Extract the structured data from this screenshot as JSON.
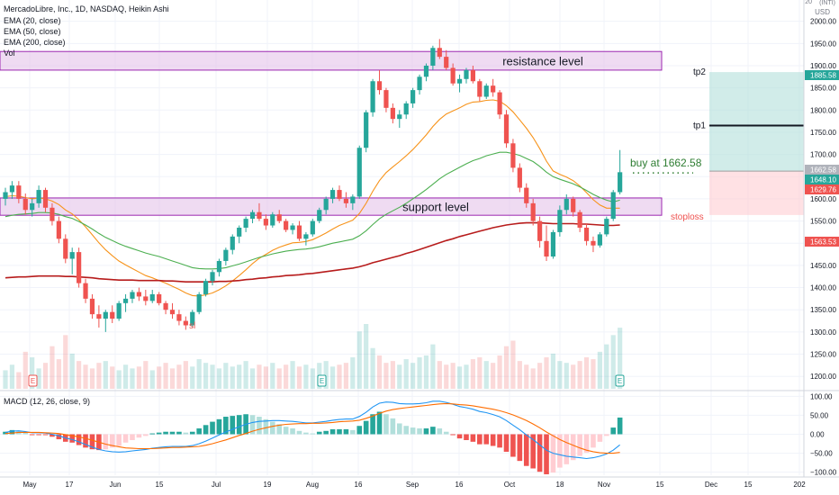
{
  "header": {
    "symbol_line": "MercadoLibre, Inc., 1D, NASDAQ, Heikin Ashi",
    "indicators": [
      "EMA (20, close)",
      "EMA (50, close)",
      "EMA (200, close)",
      "Vol"
    ],
    "macd_label": "MACD (12, 26, close, 9)"
  },
  "axis": {
    "currency_top": "20",
    "currency": "USD",
    "unit_top": "(INTI)"
  },
  "colors": {
    "up": "#26a69a",
    "down": "#ef5350",
    "ema20": "#f7931a",
    "ema50": "#4caf50",
    "ema200": "#b71c1c",
    "macd": "#2196f3",
    "signal": "#ff6d00",
    "zone_fill": "#e1bee7",
    "zone_border": "#9c27b0",
    "target_fill": "#b2dfdb",
    "stop_fill": "#ffcdd2"
  },
  "chart_data": {
    "type": "candlestick",
    "price_axis": {
      "ticks": [
        1200,
        1250,
        1300,
        1350,
        1400,
        1450,
        1500,
        1550,
        1600,
        1650,
        1700,
        1750,
        1800,
        1850,
        1900,
        1950,
        2000
      ],
      "ylim": [
        1172,
        2048
      ]
    },
    "macd_axis": {
      "ticks": [
        100,
        50,
        0,
        -50,
        -100
      ],
      "tick_labels": [
        "100.00",
        "50.00",
        "0.00",
        "−50.00",
        "−100.00"
      ],
      "ylim": [
        -108,
        108
      ]
    },
    "time_axis": {
      "labels": [
        "May",
        "17",
        "Jun",
        "15",
        "Jul",
        "19",
        "Aug",
        "16",
        "Sep",
        "16",
        "Oct",
        "18",
        "Nov",
        "15",
        "Dec",
        "15",
        "202"
      ]
    },
    "price_badges": [
      {
        "value": "1885.58",
        "color": "#26a69a"
      },
      {
        "value": "1662.58",
        "color": "#b0b3bb"
      },
      {
        "value": "1648.10",
        "color": "#26a69a"
      },
      {
        "value": "1629.76",
        "color": "#ef5350"
      },
      {
        "value": "1563.53",
        "color": "#ef5350"
      }
    ],
    "annotations": {
      "resistance": {
        "label": "resistance level",
        "low": 1890,
        "high": 1932
      },
      "support": {
        "label": "support level",
        "low": 1563,
        "high": 1602
      },
      "buy": {
        "label": "buy at 1662.58",
        "price": 1662.58
      },
      "tp1": {
        "label": "tp1",
        "price": 1765
      },
      "tp2": {
        "label": "tp2",
        "price": 1885.58
      },
      "stoploss": {
        "label": "stoploss",
        "price": 1563.53
      },
      "sl": {
        "label": "sl"
      },
      "earnings_marker": "E"
    },
    "candles_ohlc": [
      [
        1600,
        1625,
        1585,
        1615
      ],
      [
        1615,
        1640,
        1600,
        1630
      ],
      [
        1630,
        1640,
        1590,
        1600
      ],
      [
        1600,
        1612,
        1565,
        1575
      ],
      [
        1575,
        1600,
        1560,
        1590
      ],
      [
        1590,
        1630,
        1580,
        1620
      ],
      [
        1620,
        1625,
        1570,
        1580
      ],
      [
        1580,
        1590,
        1540,
        1550
      ],
      [
        1550,
        1560,
        1500,
        1510
      ],
      [
        1510,
        1520,
        1455,
        1465
      ],
      [
        1465,
        1490,
        1430,
        1480
      ],
      [
        1480,
        1490,
        1400,
        1410
      ],
      [
        1410,
        1420,
        1365,
        1375
      ],
      [
        1375,
        1385,
        1330,
        1340
      ],
      [
        1340,
        1360,
        1310,
        1330
      ],
      [
        1330,
        1350,
        1300,
        1345
      ],
      [
        1345,
        1360,
        1320,
        1330
      ],
      [
        1330,
        1370,
        1325,
        1365
      ],
      [
        1365,
        1385,
        1345,
        1375
      ],
      [
        1375,
        1395,
        1365,
        1390
      ],
      [
        1390,
        1400,
        1370,
        1380
      ],
      [
        1380,
        1395,
        1360,
        1370
      ],
      [
        1370,
        1395,
        1365,
        1385
      ],
      [
        1385,
        1390,
        1360,
        1365
      ],
      [
        1365,
        1370,
        1340,
        1350
      ],
      [
        1350,
        1365,
        1330,
        1340
      ],
      [
        1340,
        1350,
        1315,
        1325
      ],
      [
        1325,
        1335,
        1305,
        1315
      ],
      [
        1315,
        1350,
        1310,
        1345
      ],
      [
        1345,
        1390,
        1340,
        1385
      ],
      [
        1385,
        1420,
        1380,
        1415
      ],
      [
        1415,
        1440,
        1405,
        1435
      ],
      [
        1435,
        1465,
        1425,
        1460
      ],
      [
        1460,
        1490,
        1450,
        1485
      ],
      [
        1485,
        1520,
        1475,
        1515
      ],
      [
        1515,
        1540,
        1500,
        1535
      ],
      [
        1535,
        1560,
        1525,
        1555
      ],
      [
        1555,
        1575,
        1545,
        1570
      ],
      [
        1570,
        1590,
        1550,
        1555
      ],
      [
        1555,
        1565,
        1530,
        1540
      ],
      [
        1540,
        1570,
        1535,
        1565
      ],
      [
        1565,
        1575,
        1545,
        1550
      ],
      [
        1550,
        1555,
        1525,
        1530
      ],
      [
        1530,
        1545,
        1520,
        1540
      ],
      [
        1540,
        1550,
        1505,
        1510
      ],
      [
        1510,
        1525,
        1495,
        1520
      ],
      [
        1520,
        1555,
        1515,
        1550
      ],
      [
        1550,
        1580,
        1545,
        1575
      ],
      [
        1575,
        1605,
        1565,
        1600
      ],
      [
        1600,
        1625,
        1590,
        1620
      ],
      [
        1620,
        1630,
        1595,
        1600
      ],
      [
        1600,
        1615,
        1580,
        1590
      ],
      [
        1590,
        1610,
        1575,
        1605
      ],
      [
        1605,
        1720,
        1600,
        1715
      ],
      [
        1715,
        1800,
        1705,
        1795
      ],
      [
        1795,
        1870,
        1785,
        1865
      ],
      [
        1865,
        1890,
        1835,
        1845
      ],
      [
        1845,
        1850,
        1795,
        1805
      ],
      [
        1805,
        1815,
        1770,
        1780
      ],
      [
        1780,
        1800,
        1760,
        1790
      ],
      [
        1790,
        1820,
        1780,
        1815
      ],
      [
        1815,
        1850,
        1805,
        1845
      ],
      [
        1845,
        1880,
        1835,
        1875
      ],
      [
        1875,
        1905,
        1865,
        1900
      ],
      [
        1900,
        1945,
        1890,
        1940
      ],
      [
        1940,
        1960,
        1915,
        1920
      ],
      [
        1920,
        1935,
        1890,
        1895
      ],
      [
        1895,
        1905,
        1855,
        1860
      ],
      [
        1860,
        1880,
        1840,
        1870
      ],
      [
        1870,
        1895,
        1860,
        1890
      ],
      [
        1890,
        1900,
        1860,
        1865
      ],
      [
        1865,
        1870,
        1820,
        1830
      ],
      [
        1830,
        1860,
        1825,
        1855
      ],
      [
        1855,
        1870,
        1830,
        1840
      ],
      [
        1840,
        1845,
        1780,
        1790
      ],
      [
        1790,
        1800,
        1715,
        1725
      ],
      [
        1725,
        1735,
        1660,
        1670
      ],
      [
        1670,
        1680,
        1615,
        1625
      ],
      [
        1625,
        1635,
        1580,
        1590
      ],
      [
        1590,
        1600,
        1540,
        1550
      ],
      [
        1550,
        1560,
        1490,
        1505
      ],
      [
        1505,
        1540,
        1460,
        1470
      ],
      [
        1470,
        1530,
        1465,
        1525
      ],
      [
        1525,
        1585,
        1515,
        1575
      ],
      [
        1575,
        1610,
        1565,
        1600
      ],
      [
        1600,
        1605,
        1560,
        1570
      ],
      [
        1570,
        1575,
        1525,
        1535
      ],
      [
        1535,
        1545,
        1495,
        1505
      ],
      [
        1505,
        1515,
        1480,
        1495
      ],
      [
        1495,
        1525,
        1490,
        1520
      ],
      [
        1520,
        1560,
        1515,
        1555
      ],
      [
        1555,
        1620,
        1550,
        1615
      ],
      [
        1615,
        1710,
        1610,
        1660
      ]
    ],
    "ema_series": [
      {
        "name": "EMA (20, close)",
        "values": [
          1605,
          1607,
          1606,
          1603,
          1600,
          1602,
          1600,
          1595,
          1587,
          1575,
          1566,
          1553,
          1537,
          1519,
          1501,
          1485,
          1472,
          1460,
          1451,
          1443,
          1435,
          1427,
          1422,
          1416,
          1410,
          1403,
          1396,
          1388,
          1382,
          1381,
          1384,
          1388,
          1395,
          1404,
          1415,
          1427,
          1440,
          1454,
          1466,
          1475,
          1484,
          1491,
          1496,
          1501,
          1502,
          1504,
          1508,
          1515,
          1523,
          1532,
          1540,
          1546,
          1552,
          1567,
          1590,
          1617,
          1641,
          1659,
          1672,
          1684,
          1697,
          1711,
          1727,
          1744,
          1763,
          1779,
          1791,
          1798,
          1805,
          1813,
          1818,
          1819,
          1822,
          1823,
          1820,
          1810,
          1796,
          1778,
          1759,
          1738,
          1713,
          1685,
          1663,
          1655,
          1649,
          1641,
          1629,
          1614,
          1598,
          1586,
          1579,
          1579,
          1579
        ]
      },
      {
        "name": "EMA (50, close)",
        "values": [
          1560,
          1563,
          1565,
          1566,
          1567,
          1569,
          1569,
          1568,
          1565,
          1560,
          1556,
          1549,
          1541,
          1532,
          1522,
          1513,
          1506,
          1499,
          1493,
          1488,
          1483,
          1478,
          1474,
          1470,
          1465,
          1460,
          1455,
          1450,
          1445,
          1443,
          1442,
          1442,
          1443,
          1445,
          1449,
          1453,
          1458,
          1463,
          1468,
          1472,
          1476,
          1479,
          1482,
          1484,
          1486,
          1487,
          1489,
          1492,
          1496,
          1500,
          1503,
          1506,
          1509,
          1517,
          1528,
          1542,
          1555,
          1565,
          1573,
          1581,
          1590,
          1600,
          1610,
          1621,
          1633,
          1645,
          1655,
          1663,
          1671,
          1679,
          1686,
          1691,
          1697,
          1701,
          1705,
          1705,
          1702,
          1698,
          1691,
          1684,
          1673,
          1660,
          1650,
          1644,
          1639,
          1634,
          1627,
          1619,
          1610,
          1603,
          1597,
          1593,
          1597
        ]
      },
      {
        "name": "EMA (200, close)",
        "values": [
          1422,
          1423,
          1424,
          1424,
          1425,
          1426,
          1426,
          1426,
          1426,
          1425,
          1425,
          1424,
          1423,
          1422,
          1420,
          1419,
          1418,
          1417,
          1417,
          1417,
          1416,
          1416,
          1416,
          1416,
          1415,
          1415,
          1414,
          1413,
          1413,
          1413,
          1413,
          1413,
          1414,
          1414,
          1415,
          1416,
          1418,
          1419,
          1421,
          1422,
          1424,
          1425,
          1427,
          1428,
          1429,
          1431,
          1432,
          1434,
          1436,
          1438,
          1440,
          1442,
          1444,
          1447,
          1451,
          1456,
          1460,
          1464,
          1468,
          1472,
          1477,
          1481,
          1486,
          1491,
          1496,
          1501,
          1506,
          1510,
          1515,
          1519,
          1523,
          1527,
          1531,
          1535,
          1538,
          1541,
          1543,
          1545,
          1546,
          1546,
          1546,
          1545,
          1544,
          1544,
          1544,
          1544,
          1543,
          1543,
          1542,
          1541,
          1540,
          1540,
          1541
        ]
      }
    ],
    "volume": [
      20,
      26,
      18,
      40,
      34,
      22,
      28,
      46,
      32,
      58,
      38,
      30,
      26,
      22,
      28,
      30,
      24,
      20,
      26,
      22,
      24,
      30,
      20,
      24,
      28,
      22,
      26,
      30,
      24,
      32,
      28,
      26,
      22,
      28,
      24,
      26,
      30,
      22,
      26,
      24,
      28,
      22,
      26,
      30,
      24,
      26,
      22,
      28,
      30,
      24,
      26,
      28,
      34,
      62,
      70,
      44,
      36,
      28,
      30,
      26,
      32,
      28,
      34,
      36,
      48,
      30,
      26,
      28,
      24,
      26,
      32,
      34,
      30,
      28,
      36,
      46,
      52,
      30,
      26,
      22,
      28,
      34,
      38,
      30,
      28,
      26,
      30,
      34,
      32,
      40,
      48,
      58,
      66
    ],
    "macd_series": [
      {
        "name": "MACD",
        "values": [
          5,
          8,
          9,
          7,
          4,
          4,
          3,
          0,
          -4,
          -10,
          -14,
          -20,
          -27,
          -34,
          -40,
          -44,
          -46,
          -47,
          -46,
          -44,
          -42,
          -40,
          -37,
          -35,
          -33,
          -32,
          -32,
          -32,
          -30,
          -25,
          -18,
          -10,
          -2,
          6,
          13,
          20,
          26,
          31,
          34,
          35,
          36,
          36,
          35,
          34,
          32,
          30,
          30,
          32,
          34,
          37,
          39,
          40,
          40,
          47,
          58,
          72,
          82,
          85,
          84,
          81,
          80,
          80,
          81,
          83,
          87,
          87,
          84,
          79,
          73,
          70,
          66,
          60,
          57,
          52,
          46,
          36,
          24,
          12,
          -2,
          -14,
          -28,
          -42,
          -50,
          -54,
          -58,
          -60,
          -62,
          -64,
          -62,
          -58,
          -52,
          -42,
          -28
        ]
      },
      {
        "name": "Signal",
        "values": [
          2,
          3,
          5,
          5,
          5,
          5,
          4,
          3,
          2,
          -1,
          -4,
          -7,
          -11,
          -16,
          -21,
          -26,
          -30,
          -33,
          -36,
          -37,
          -38,
          -38,
          -38,
          -37,
          -36,
          -35,
          -35,
          -34,
          -33,
          -32,
          -29,
          -25,
          -20,
          -15,
          -9,
          -3,
          2,
          8,
          13,
          17,
          21,
          24,
          26,
          27,
          28,
          28,
          29,
          29,
          30,
          31,
          33,
          34,
          35,
          37,
          42,
          48,
          55,
          61,
          65,
          68,
          70,
          72,
          74,
          76,
          78,
          80,
          81,
          80,
          78,
          77,
          75,
          72,
          69,
          66,
          62,
          57,
          51,
          44,
          36,
          27,
          17,
          6,
          -4,
          -14,
          -22,
          -29,
          -36,
          -42,
          -46,
          -49,
          -50,
          -50,
          -48
        ]
      }
    ]
  }
}
